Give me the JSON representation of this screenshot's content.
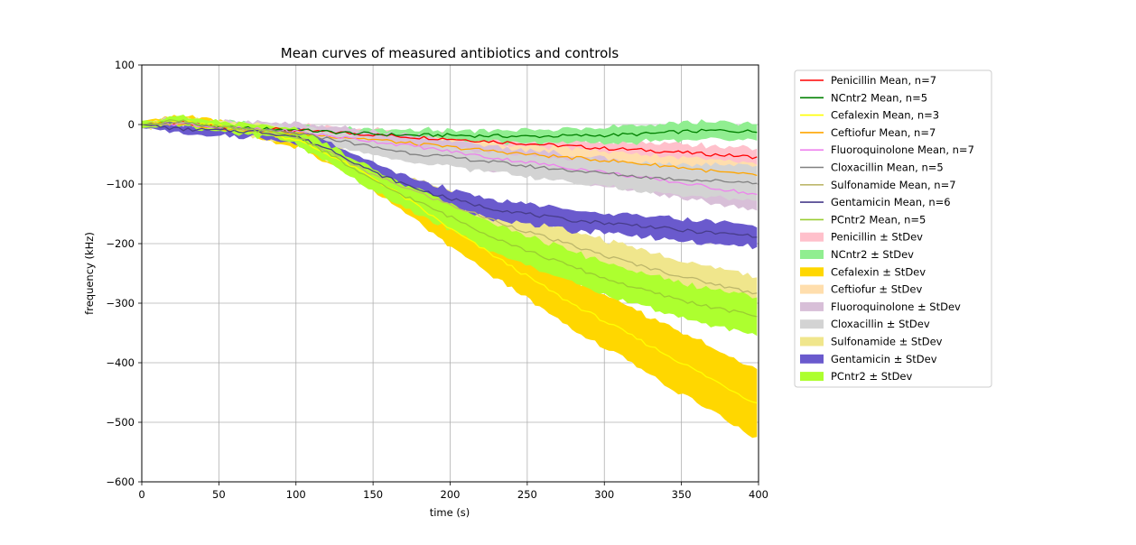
{
  "chart_data": {
    "type": "line",
    "title": "Mean curves of measured antibiotics and controls",
    "xlabel": "time (s)",
    "ylabel": "frequency (kHz)",
    "xlim": [
      0,
      400
    ],
    "ylim": [
      -600,
      100
    ],
    "xticks": [
      0,
      50,
      100,
      150,
      200,
      250,
      300,
      350,
      400
    ],
    "yticks": [
      100,
      0,
      -100,
      -200,
      -300,
      -400,
      -500,
      -600
    ],
    "xtick_labels": [
      "0",
      "50",
      "100",
      "150",
      "200",
      "250",
      "300",
      "350",
      "400"
    ],
    "ytick_labels": [
      "100",
      "0",
      "−100",
      "−200",
      "−300",
      "−400",
      "−500",
      "−600"
    ],
    "grid": true,
    "legend_position": "outside-right",
    "x": [
      0,
      25,
      50,
      75,
      100,
      125,
      150,
      175,
      200,
      225,
      250,
      275,
      300,
      325,
      350,
      375,
      400
    ],
    "series": [
      {
        "name": "Penicillin",
        "legend_mean": "Penicillin Mean, n=7",
        "legend_band": "Penicillin ± StDev",
        "line_color": "#ff0000",
        "band_color": "#ffc0cb",
        "mean": [
          0,
          3,
          -5,
          -7,
          -10,
          -13,
          -17,
          -21,
          -24,
          -28,
          -32,
          -36,
          -40,
          -43,
          -47,
          -51,
          -55
        ],
        "sd": [
          4,
          6,
          7,
          7,
          8,
          8,
          9,
          9,
          10,
          11,
          11,
          12,
          13,
          13,
          14,
          14,
          15
        ]
      },
      {
        "name": "NCntr2",
        "legend_mean": "NCntr2 Mean, n=5",
        "legend_band": "NCntr2 ± StDev",
        "line_color": "#008000",
        "band_color": "#90ee90",
        "mean": [
          0,
          4,
          -5,
          -7,
          -9,
          -13,
          -16,
          -18,
          -18,
          -19,
          -20,
          -19,
          -18,
          -16,
          -12,
          -10,
          -12
        ],
        "sd": [
          4,
          7,
          9,
          9,
          8,
          7,
          8,
          9,
          9,
          10,
          11,
          12,
          13,
          13,
          14,
          14,
          14
        ]
      },
      {
        "name": "Cefalexin",
        "legend_mean": "Cefalexin Mean, n=3",
        "legend_band": "Cefalexin ± StDev",
        "line_color": "#ffff00",
        "band_color": "#ffd700",
        "mean": [
          0,
          5,
          -3,
          -12,
          -25,
          -55,
          -90,
          -130,
          -175,
          -215,
          -255,
          -295,
          -330,
          -365,
          -400,
          -435,
          -470
        ],
        "sd": [
          6,
          10,
          8,
          10,
          12,
          15,
          20,
          25,
          30,
          35,
          38,
          42,
          45,
          48,
          52,
          55,
          58
        ]
      },
      {
        "name": "Ceftiofur",
        "legend_mean": "Ceftiofur Mean, n=7",
        "legend_band": "Ceftiofur ± StDev",
        "line_color": "#ffa500",
        "band_color": "#ffdead",
        "mean": [
          0,
          2,
          -6,
          -10,
          -15,
          -20,
          -25,
          -32,
          -38,
          -44,
          -50,
          -55,
          -60,
          -66,
          -72,
          -80,
          -86
        ],
        "sd": [
          4,
          5,
          6,
          7,
          8,
          9,
          10,
          11,
          12,
          13,
          14,
          15,
          16,
          17,
          18,
          19,
          20
        ]
      },
      {
        "name": "Fluoroquinolone",
        "legend_mean": "Fluoroquinolone Mean, n=7",
        "legend_band": "Fluoroquinolone ± StDev",
        "line_color": "#ee82ee",
        "band_color": "#d8bfd8",
        "mean": [
          0,
          2,
          -5,
          -8,
          -12,
          -20,
          -28,
          -36,
          -45,
          -55,
          -63,
          -72,
          -80,
          -90,
          -98,
          -108,
          -118
        ],
        "sd": [
          5,
          8,
          10,
          12,
          14,
          16,
          17,
          18,
          19,
          20,
          21,
          22,
          23,
          24,
          25,
          26,
          27
        ]
      },
      {
        "name": "Cloxacillin",
        "legend_mean": "Cloxacillin Mean, n=5",
        "legend_band": "Cloxacillin ± StDev",
        "line_color": "#808080",
        "band_color": "#d3d3d3",
        "mean": [
          0,
          2,
          -5,
          -9,
          -15,
          -25,
          -38,
          -48,
          -55,
          -62,
          -70,
          -76,
          -82,
          -88,
          -92,
          -95,
          -97
        ],
        "sd": [
          4,
          6,
          8,
          9,
          10,
          12,
          14,
          15,
          16,
          17,
          18,
          20,
          22,
          24,
          26,
          28,
          30
        ]
      },
      {
        "name": "Sulfonamide",
        "legend_mean": "Sulfonamide Mean, n=7",
        "legend_band": "Sulfonamide ± StDev",
        "line_color": "#bdb76b",
        "band_color": "#f0e68c",
        "mean": [
          0,
          3,
          -4,
          -10,
          -20,
          -50,
          -85,
          -110,
          -135,
          -158,
          -180,
          -200,
          -220,
          -238,
          -255,
          -270,
          -285
        ],
        "sd": [
          4,
          6,
          8,
          10,
          12,
          15,
          18,
          20,
          22,
          24,
          25,
          26,
          26,
          27,
          27,
          28,
          28
        ]
      },
      {
        "name": "Gentamicin",
        "legend_mean": "Gentamicin Mean, n=6",
        "legend_band": "Gentamicin ± StDev",
        "line_color": "#483d8b",
        "band_color": "#6a5acd",
        "mean": [
          0,
          -8,
          -10,
          -12,
          -20,
          -45,
          -80,
          -105,
          -125,
          -140,
          -150,
          -160,
          -165,
          -170,
          -178,
          -183,
          -187
        ],
        "sd": [
          6,
          9,
          9,
          10,
          12,
          14,
          15,
          16,
          16,
          16,
          17,
          17,
          17,
          18,
          18,
          18,
          18
        ]
      },
      {
        "name": "PCntr2",
        "legend_mean": "PCntr2 Mean, n=5",
        "legend_band": "PCntr2 ± StDev",
        "line_color": "#9acd32",
        "band_color": "#adff2f",
        "mean": [
          0,
          8,
          -5,
          -10,
          -18,
          -55,
          -95,
          -125,
          -155,
          -185,
          -212,
          -235,
          -258,
          -278,
          -295,
          -310,
          -322
        ],
        "sd": [
          6,
          8,
          8,
          10,
          12,
          16,
          18,
          20,
          22,
          24,
          25,
          26,
          27,
          28,
          29,
          30,
          32
        ]
      }
    ]
  }
}
